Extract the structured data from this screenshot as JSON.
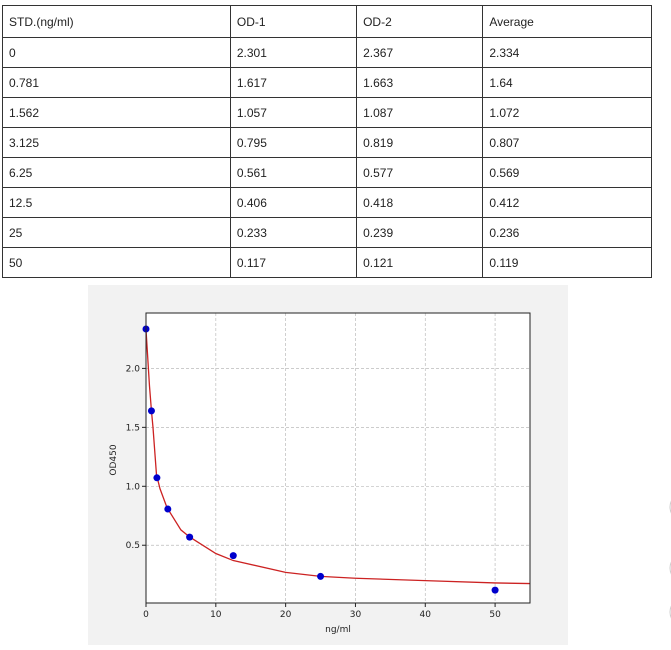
{
  "table": {
    "header": [
      "STD.(ng/ml)",
      "OD-1",
      "OD-2",
      "Average"
    ],
    "rows": [
      [
        "0",
        "2.301",
        "2.367",
        "2.334"
      ],
      [
        "0.781",
        "1.617",
        "1.663",
        "1.64"
      ],
      [
        "1.562",
        "1.057",
        "1.087",
        "1.072"
      ],
      [
        "3.125",
        "0.795",
        "0.819",
        "0.807"
      ],
      [
        "6.25",
        "0.561",
        "0.577",
        "0.569"
      ],
      [
        "12.5",
        "0.406",
        "0.418",
        "0.412"
      ],
      [
        "25",
        "0.233",
        "0.239",
        "0.236"
      ],
      [
        "50",
        "0.117",
        "0.121",
        "0.119"
      ]
    ]
  },
  "chart_data": {
    "type": "scatter",
    "xlabel": "ng/ml",
    "ylabel": "OD450",
    "xlim": [
      0,
      55
    ],
    "ylim": [
      0.01,
      2.47
    ],
    "xticks": [
      0,
      10,
      20,
      30,
      40,
      50
    ],
    "yticks": [
      0.5,
      {
        "value": 1.0,
        "label": "1.0"
      },
      1.5,
      {
        "value": 2.0,
        "label": "2.0"
      }
    ],
    "grid": true,
    "series": [
      {
        "mode": "markers",
        "color": "#0000cc",
        "x": [
          0,
          0.781,
          1.562,
          3.125,
          6.25,
          12.5,
          25,
          50
        ],
        "values": [
          2.334,
          1.64,
          1.072,
          0.807,
          0.569,
          0.412,
          0.236,
          0.119
        ]
      },
      {
        "mode": "line",
        "color": "#cc2222",
        "x": [
          0,
          0.5,
          0.781,
          1,
          1.5,
          2,
          3,
          5,
          6.25,
          10,
          12.5,
          20,
          25,
          30,
          40,
          50,
          55
        ],
        "values": [
          2.33,
          1.85,
          1.64,
          1.5,
          1.1,
          0.98,
          0.82,
          0.63,
          0.57,
          0.43,
          0.37,
          0.27,
          0.236,
          0.22,
          0.2,
          0.18,
          0.175
        ]
      }
    ]
  }
}
